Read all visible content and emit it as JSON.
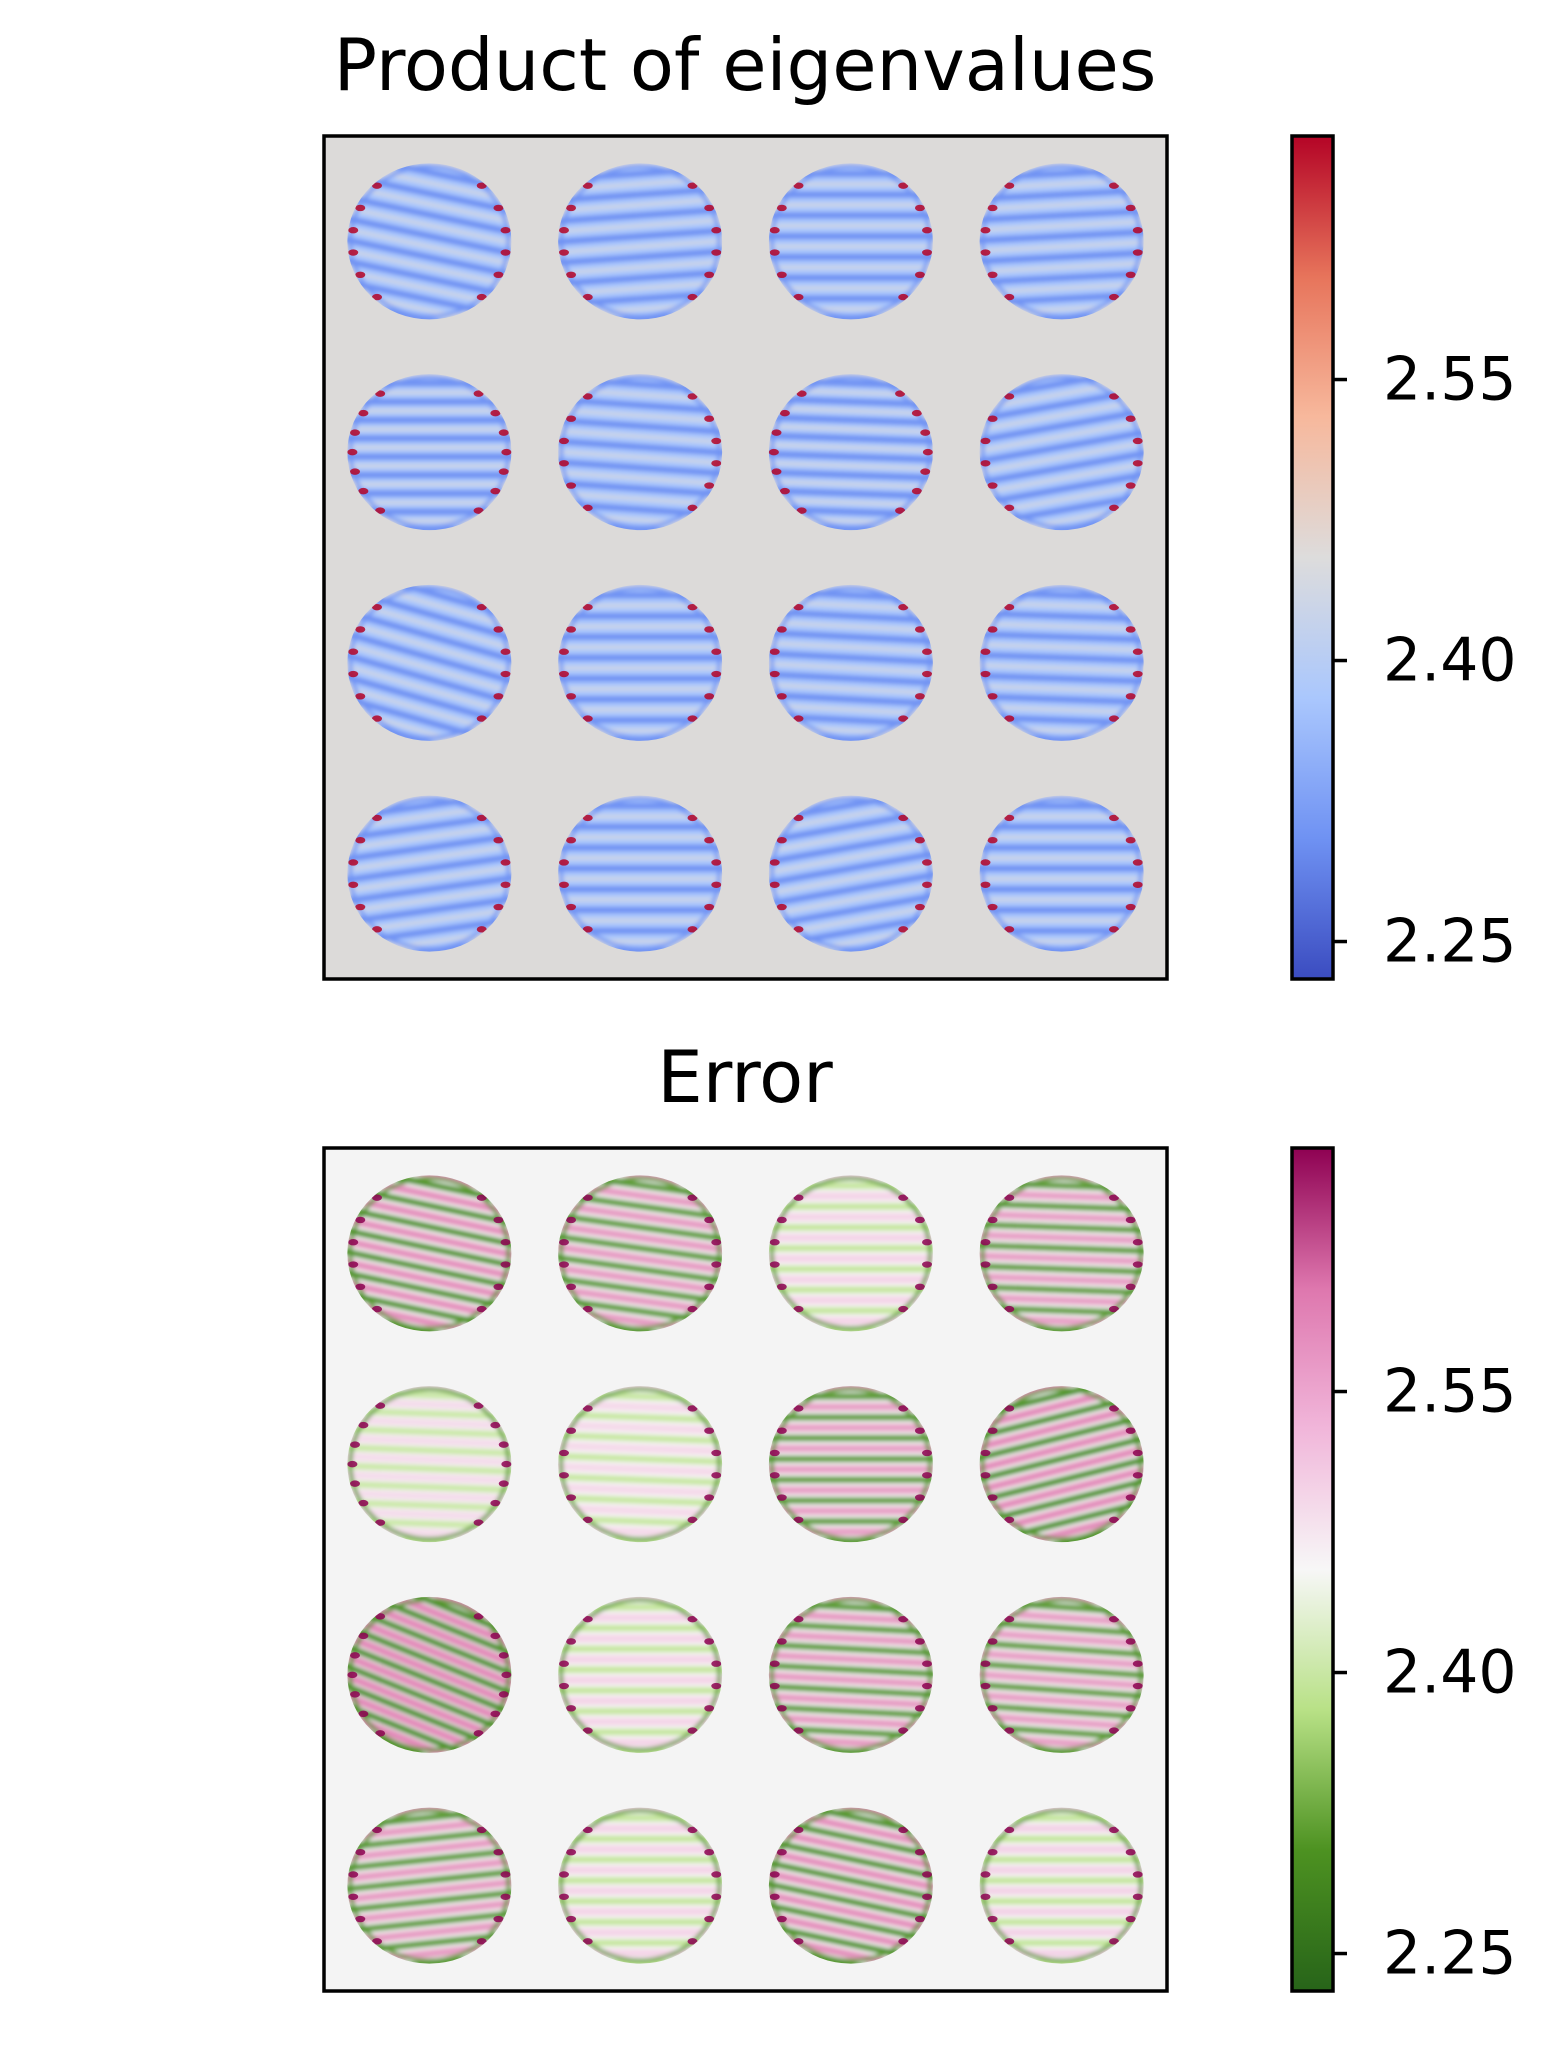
{
  "chart_data": [
    {
      "type": "heatmap",
      "title": "Product of eigenvalues",
      "colormap": "coolwarm",
      "colormap_stops": [
        "#3b4cc0",
        "#6f92f3",
        "#aac7fd",
        "#dddcdc",
        "#f7b89c",
        "#e7745b",
        "#b40426"
      ],
      "background_color": "#dcdad9",
      "colorbar": {
        "range": [
          2.23,
          2.68
        ],
        "ticks": [
          2.25,
          2.4,
          2.55
        ],
        "tick_labels": [
          "2.25",
          "2.40",
          "2.55"
        ]
      },
      "grid": {
        "rows": 4,
        "cols": 4,
        "tiles": [
          {
            "angle": 12,
            "stripes": 7
          },
          {
            "angle": -4,
            "stripes": 7
          },
          {
            "angle": 0,
            "stripes": 7
          },
          {
            "angle": -3,
            "stripes": 7
          },
          {
            "angle": 0,
            "stripes": 8
          },
          {
            "angle": 4,
            "stripes": 7
          },
          {
            "angle": 2,
            "stripes": 8
          },
          {
            "angle": -10,
            "stripes": 7
          },
          {
            "angle": 16,
            "stripes": 7
          },
          {
            "angle": 0,
            "stripes": 7
          },
          {
            "angle": 3,
            "stripes": 7
          },
          {
            "angle": 2,
            "stripes": 7
          },
          {
            "angle": -8,
            "stripes": 7
          },
          {
            "angle": 0,
            "stripes": 7
          },
          {
            "angle": -10,
            "stripes": 7
          },
          {
            "angle": 0,
            "stripes": 7
          }
        ]
      }
    },
    {
      "type": "heatmap",
      "title": "Error",
      "colormap": "PiYG_r",
      "colormap_stops": [
        "#276419",
        "#4d9221",
        "#b8e186",
        "#f7f7f7",
        "#f1b6da",
        "#de77ae",
        "#8e0152"
      ],
      "background_color": "#f4f4f4",
      "colorbar": {
        "range": [
          2.23,
          2.68
        ],
        "ticks": [
          2.25,
          2.4,
          2.55
        ],
        "tick_labels": [
          "2.25",
          "2.40",
          "2.55"
        ]
      },
      "grid": {
        "rows": 4,
        "cols": 4,
        "tiles": [
          {
            "angle": 12,
            "stripes": 7,
            "intensity": 0.9
          },
          {
            "angle": 8,
            "stripes": 7,
            "intensity": 0.75
          },
          {
            "angle": 0,
            "stripes": 7,
            "intensity": 0.45
          },
          {
            "angle": 2,
            "stripes": 7,
            "intensity": 0.7
          },
          {
            "angle": 2,
            "stripes": 8,
            "intensity": 0.25
          },
          {
            "angle": 2,
            "stripes": 7,
            "intensity": 0.35
          },
          {
            "angle": 0,
            "stripes": 7,
            "intensity": 0.7
          },
          {
            "angle": -14,
            "stripes": 7,
            "intensity": 0.95
          },
          {
            "angle": 22,
            "stripes": 8,
            "intensity": 1.0
          },
          {
            "angle": 0,
            "stripes": 7,
            "intensity": 0.45
          },
          {
            "angle": 3,
            "stripes": 7,
            "intensity": 0.75
          },
          {
            "angle": 4,
            "stripes": 7,
            "intensity": 0.7
          },
          {
            "angle": -6,
            "stripes": 7,
            "intensity": 0.75
          },
          {
            "angle": 0,
            "stripes": 7,
            "intensity": 0.45
          },
          {
            "angle": 12,
            "stripes": 7,
            "intensity": 0.9
          },
          {
            "angle": 0,
            "stripes": 7,
            "intensity": 0.5
          }
        ]
      }
    }
  ]
}
